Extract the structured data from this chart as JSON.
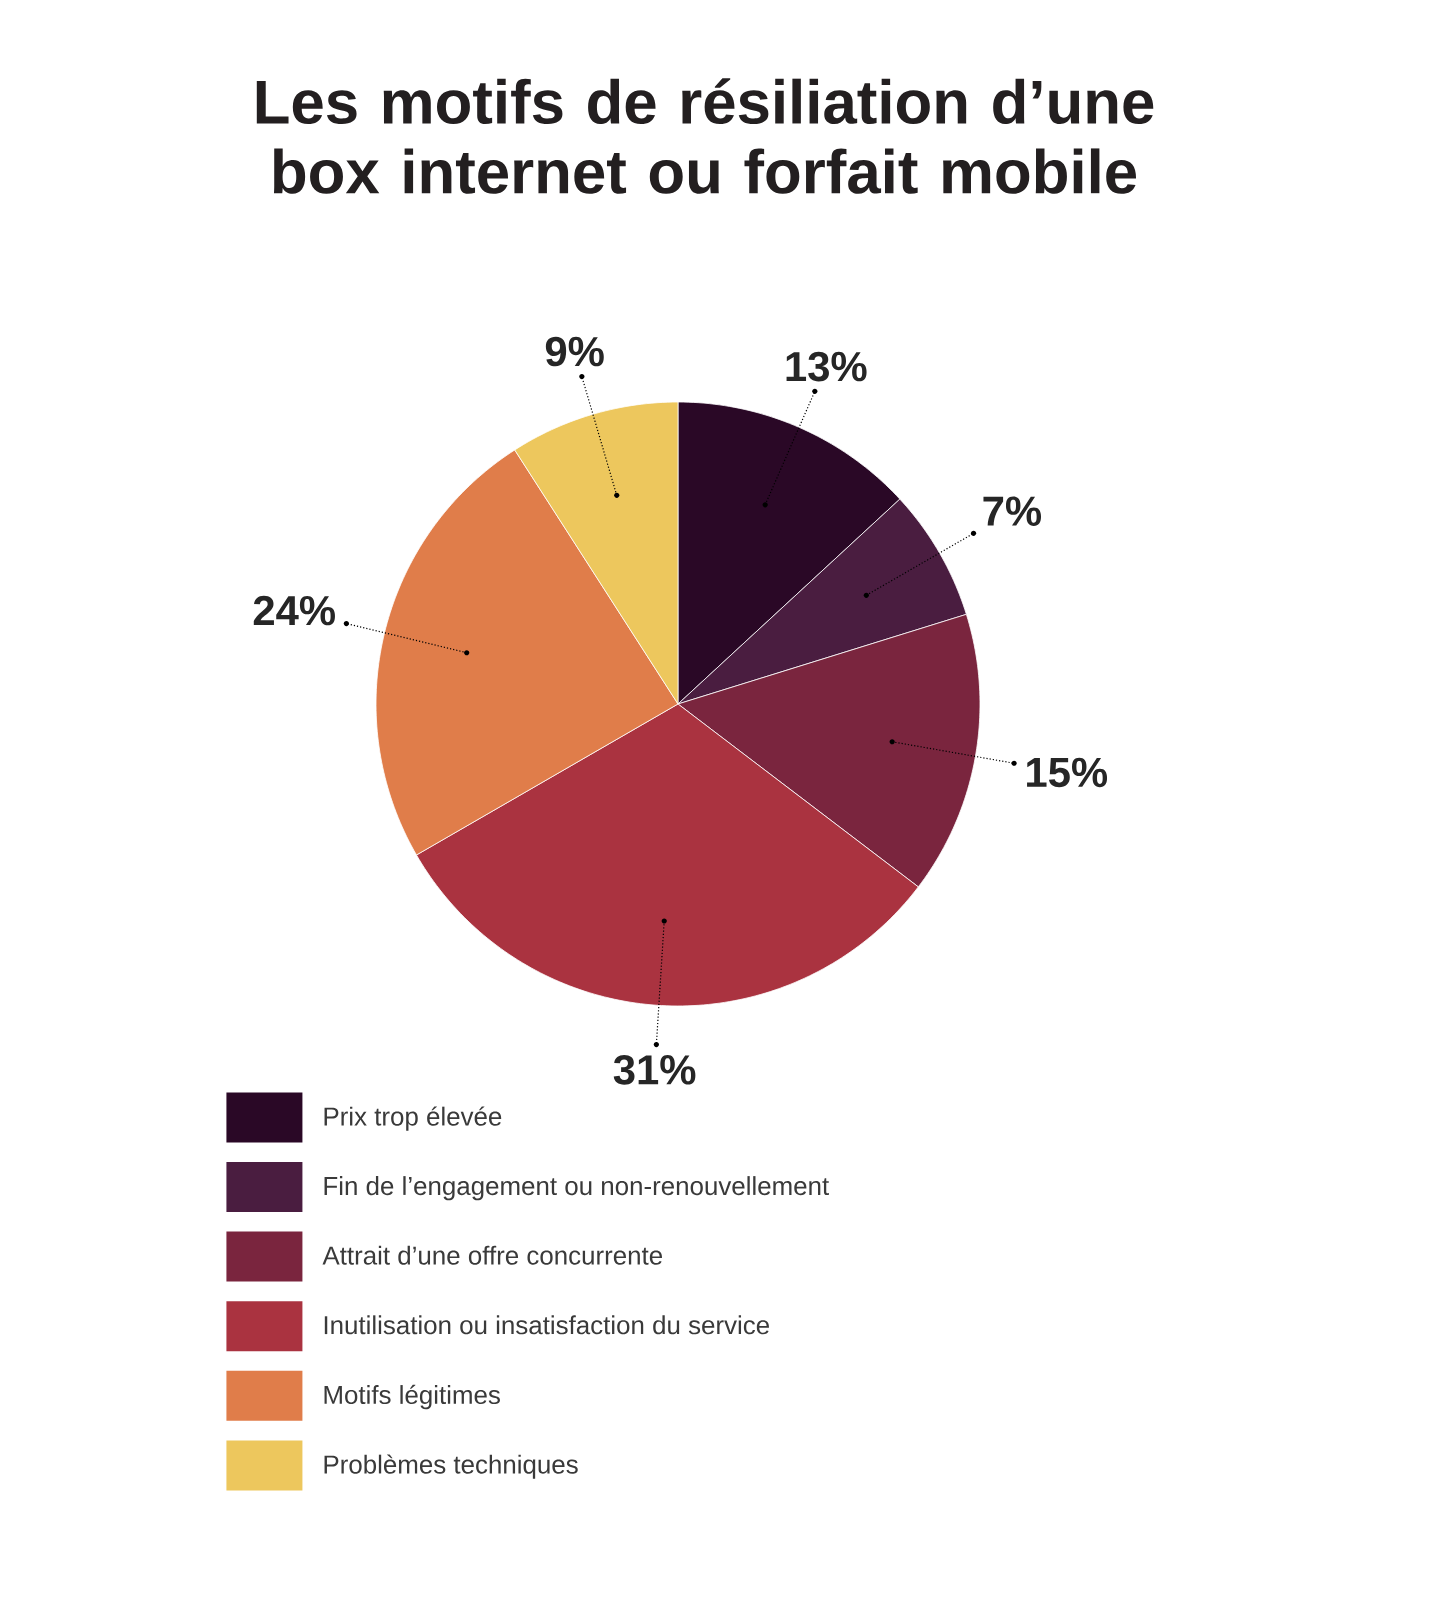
{
  "chart_data": {
    "type": "pie",
    "title": "Les motifs de résiliation d’une box internet ou forfait mobile",
    "categories": [
      "Prix trop élevée",
      "Fin de l’engagement ou non-renouvellement",
      "Attrait d’une offre concurrente",
      "Inutilisation ou insatisfaction du service",
      "Motifs légitimes",
      "Problèmes techniques"
    ],
    "values": [
      13,
      7,
      15,
      31,
      24,
      9
    ],
    "value_labels": [
      "13%",
      "7%",
      "15%",
      "31%",
      "24%",
      "9%"
    ],
    "colors": [
      "#2a0826",
      "#4a1d40",
      "#7a253e",
      "#aa3340",
      "#e07d4a",
      "#edc75d"
    ],
    "legend": "bottom"
  }
}
